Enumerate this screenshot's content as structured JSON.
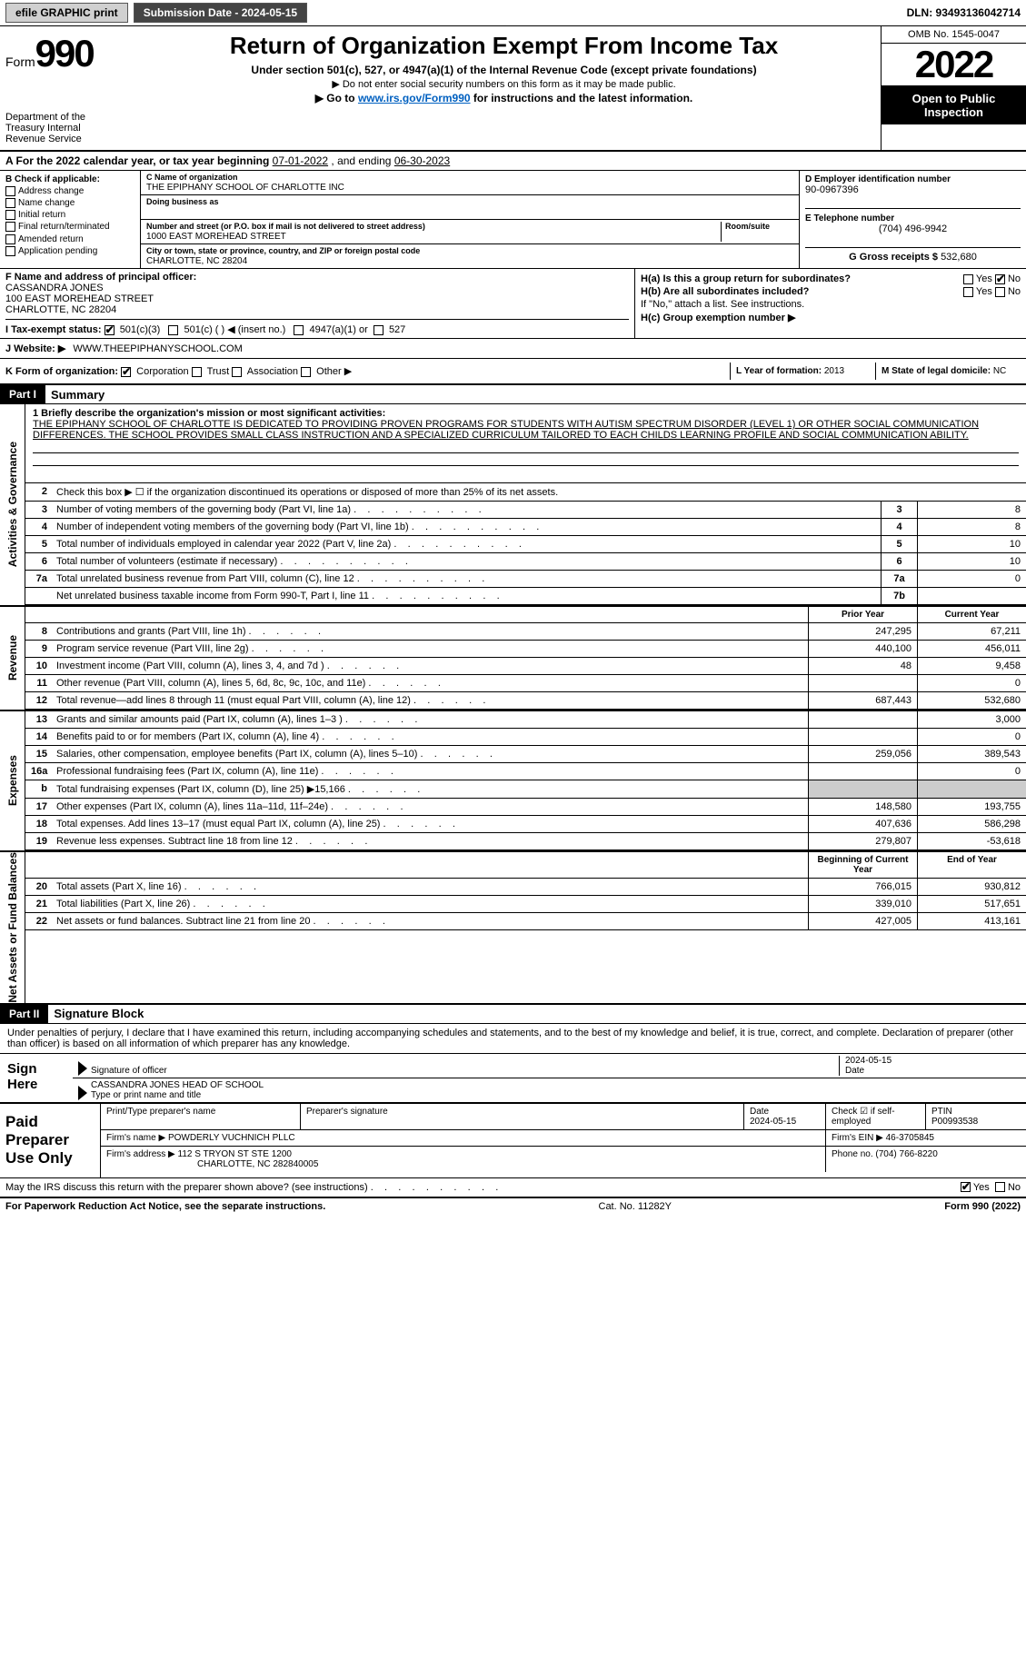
{
  "topbar": {
    "efile": "efile GRAPHIC print",
    "submission_label": "Submission Date - 2024-05-15",
    "dln": "DLN: 93493136042714"
  },
  "header": {
    "form_prefix": "Form",
    "form_number": "990",
    "title": "Return of Organization Exempt From Income Tax",
    "subtitle": "Under section 501(c), 527, or 4947(a)(1) of the Internal Revenue Code (except private foundations)",
    "note1": "▶ Do not enter social security numbers on this form as it may be made public.",
    "note2_pre": "▶ Go to ",
    "note2_link": "www.irs.gov/Form990",
    "note2_post": " for instructions and the latest information.",
    "omb": "OMB No. 1545-0047",
    "year": "2022",
    "open_pub": "Open to Public Inspection",
    "dept": "Department of the Treasury Internal Revenue Service"
  },
  "secA": {
    "text_pre": "A For the 2022 calendar year, or tax year beginning ",
    "begin": "07-01-2022",
    "text_mid": " , and ending ",
    "end": "06-30-2023"
  },
  "secB": {
    "hdr": "B Check if applicable:",
    "opts": [
      "Address change",
      "Name change",
      "Initial return",
      "Final return/terminated",
      "Amended return",
      "Application pending"
    ]
  },
  "secC": {
    "name_lbl": "C Name of organization",
    "name": "THE EPIPHANY SCHOOL OF CHARLOTTE INC",
    "dba_lbl": "Doing business as",
    "dba": "",
    "addr_lbl": "Number and street (or P.O. box if mail is not delivered to street address)",
    "room_lbl": "Room/suite",
    "addr": "1000 EAST MOREHEAD STREET",
    "city_lbl": "City or town, state or province, country, and ZIP or foreign postal code",
    "city": "CHARLOTTE, NC  28204"
  },
  "secD": {
    "lbl": "D Employer identification number",
    "val": "90-0967396"
  },
  "secE": {
    "lbl": "E Telephone number",
    "val": "(704) 496-9942"
  },
  "secG": {
    "lbl": "G Gross receipts $",
    "val": "532,680"
  },
  "secF": {
    "lbl": "F Name and address of principal officer:",
    "name": "CASSANDRA JONES",
    "addr1": "100 EAST MOREHEAD STREET",
    "addr2": "CHARLOTTE, NC  28204"
  },
  "secH": {
    "ha": "H(a)  Is this a group return for subordinates?",
    "ha_yes": "Yes",
    "ha_no": "No",
    "hb": "H(b)  Are all subordinates included?",
    "hb_yes": "Yes",
    "hb_no": "No",
    "hb_note": "If \"No,\" attach a list. See instructions.",
    "hc": "H(c)  Group exemption number ▶"
  },
  "secI": {
    "lbl": "I   Tax-exempt status:",
    "o1": "501(c)(3)",
    "o2": "501(c) (   ) ◀ (insert no.)",
    "o3": "4947(a)(1) or",
    "o4": "527"
  },
  "secJ": {
    "lbl": "J   Website: ▶",
    "val": "WWW.THEEPIPHANYSCHOOL.COM"
  },
  "secK": {
    "lbl": "K Form of organization:",
    "o1": "Corporation",
    "o2": "Trust",
    "o3": "Association",
    "o4": "Other ▶"
  },
  "secL": {
    "lbl": "L Year of formation:",
    "val": "2013"
  },
  "secM": {
    "lbl": "M State of legal domicile:",
    "val": "NC"
  },
  "part1": {
    "hdr": "Part I",
    "title": "Summary",
    "mission_lbl": "1  Briefly describe the organization's mission or most significant activities:",
    "mission": "THE EPIPHANY SCHOOL OF CHARLOTTE IS DEDICATED TO PROVIDING PROVEN PROGRAMS FOR STUDENTS WITH AUTISM SPECTRUM DISORDER (LEVEL 1) OR OTHER SOCIAL COMMUNICATION DIFFERENCES. THE SCHOOL PROVIDES SMALL CLASS INSTRUCTION AND A SPECIALIZED CURRICULUM TAILORED TO EACH CHILDS LEARNING PROFILE AND SOCIAL COMMUNICATION ABILITY.",
    "line2": "Check this box ▶ ☐ if the organization discontinued its operations or disposed of more than 25% of its net assets.",
    "vtab1": "Activities & Governance",
    "vtab2": "Revenue",
    "vtab3": "Expenses",
    "vtab4": "Net Assets or Fund Balances",
    "prior_hdr": "Prior Year",
    "curr_hdr": "Current Year",
    "boy_hdr": "Beginning of Current Year",
    "eoy_hdr": "End of Year",
    "rows_gov": [
      {
        "n": "3",
        "d": "Number of voting members of the governing body (Part VI, line 1a)",
        "box": "3",
        "val": "8"
      },
      {
        "n": "4",
        "d": "Number of independent voting members of the governing body (Part VI, line 1b)",
        "box": "4",
        "val": "8"
      },
      {
        "n": "5",
        "d": "Total number of individuals employed in calendar year 2022 (Part V, line 2a)",
        "box": "5",
        "val": "10"
      },
      {
        "n": "6",
        "d": "Total number of volunteers (estimate if necessary)",
        "box": "6",
        "val": "10"
      },
      {
        "n": "7a",
        "d": "Total unrelated business revenue from Part VIII, column (C), line 12",
        "box": "7a",
        "val": "0"
      },
      {
        "n": "",
        "d": "Net unrelated business taxable income from Form 990-T, Part I, line 11",
        "box": "7b",
        "val": ""
      }
    ],
    "rows_rev": [
      {
        "n": "8",
        "d": "Contributions and grants (Part VIII, line 1h)",
        "py": "247,295",
        "cy": "67,211"
      },
      {
        "n": "9",
        "d": "Program service revenue (Part VIII, line 2g)",
        "py": "440,100",
        "cy": "456,011"
      },
      {
        "n": "10",
        "d": "Investment income (Part VIII, column (A), lines 3, 4, and 7d )",
        "py": "48",
        "cy": "9,458"
      },
      {
        "n": "11",
        "d": "Other revenue (Part VIII, column (A), lines 5, 6d, 8c, 9c, 10c, and 11e)",
        "py": "",
        "cy": "0"
      },
      {
        "n": "12",
        "d": "Total revenue—add lines 8 through 11 (must equal Part VIII, column (A), line 12)",
        "py": "687,443",
        "cy": "532,680"
      }
    ],
    "rows_exp": [
      {
        "n": "13",
        "d": "Grants and similar amounts paid (Part IX, column (A), lines 1–3 )",
        "py": "",
        "cy": "3,000"
      },
      {
        "n": "14",
        "d": "Benefits paid to or for members (Part IX, column (A), line 4)",
        "py": "",
        "cy": "0"
      },
      {
        "n": "15",
        "d": "Salaries, other compensation, employee benefits (Part IX, column (A), lines 5–10)",
        "py": "259,056",
        "cy": "389,543"
      },
      {
        "n": "16a",
        "d": "Professional fundraising fees (Part IX, column (A), line 11e)",
        "py": "",
        "cy": "0"
      },
      {
        "n": "b",
        "d": "Total fundraising expenses (Part IX, column (D), line 25) ▶15,166",
        "py": "—shade—",
        "cy": "—shade—"
      },
      {
        "n": "17",
        "d": "Other expenses (Part IX, column (A), lines 11a–11d, 11f–24e)",
        "py": "148,580",
        "cy": "193,755"
      },
      {
        "n": "18",
        "d": "Total expenses. Add lines 13–17 (must equal Part IX, column (A), line 25)",
        "py": "407,636",
        "cy": "586,298"
      },
      {
        "n": "19",
        "d": "Revenue less expenses. Subtract line 18 from line 12",
        "py": "279,807",
        "cy": "-53,618"
      }
    ],
    "rows_net": [
      {
        "n": "20",
        "d": "Total assets (Part X, line 16)",
        "py": "766,015",
        "cy": "930,812"
      },
      {
        "n": "21",
        "d": "Total liabilities (Part X, line 26)",
        "py": "339,010",
        "cy": "517,651"
      },
      {
        "n": "22",
        "d": "Net assets or fund balances. Subtract line 21 from line 20",
        "py": "427,005",
        "cy": "413,161"
      }
    ]
  },
  "part2": {
    "hdr": "Part II",
    "title": "Signature Block",
    "intro": "Under penalties of perjury, I declare that I have examined this return, including accompanying schedules and statements, and to the best of my knowledge and belief, it is true, correct, and complete. Declaration of preparer (other than officer) is based on all information of which preparer has any knowledge.",
    "sign_here": "Sign Here",
    "sig_officer": "Signature of officer",
    "sig_date": "Date",
    "sig_date_val": "2024-05-15",
    "officer_name": "CASSANDRA JONES  HEAD OF SCHOOL",
    "type_name": "Type or print name and title",
    "paid_prep": "Paid Preparer Use Only",
    "prep_name_lbl": "Print/Type preparer's name",
    "prep_name": "",
    "prep_sig_lbl": "Preparer's signature",
    "prep_date_lbl": "Date",
    "prep_date": "2024-05-15",
    "check_if": "Check ☑ if self-employed",
    "ptin_lbl": "PTIN",
    "ptin": "P00993538",
    "firm_name_lbl": "Firm's name    ▶",
    "firm_name": "POWDERLY VUCHNICH PLLC",
    "firm_ein_lbl": "Firm's EIN ▶",
    "firm_ein": "46-3705845",
    "firm_addr_lbl": "Firm's address ▶",
    "firm_addr1": "112 S TRYON ST STE 1200",
    "firm_addr2": "CHARLOTTE, NC  282840005",
    "phone_lbl": "Phone no.",
    "phone": "(704) 766-8220",
    "discuss": "May the IRS discuss this return with the preparer shown above? (see instructions)",
    "yes": "Yes",
    "no": "No"
  },
  "footer": {
    "pra": "For Paperwork Reduction Act Notice, see the separate instructions.",
    "cat": "Cat. No. 11282Y",
    "form": "Form 990 (2022)"
  }
}
